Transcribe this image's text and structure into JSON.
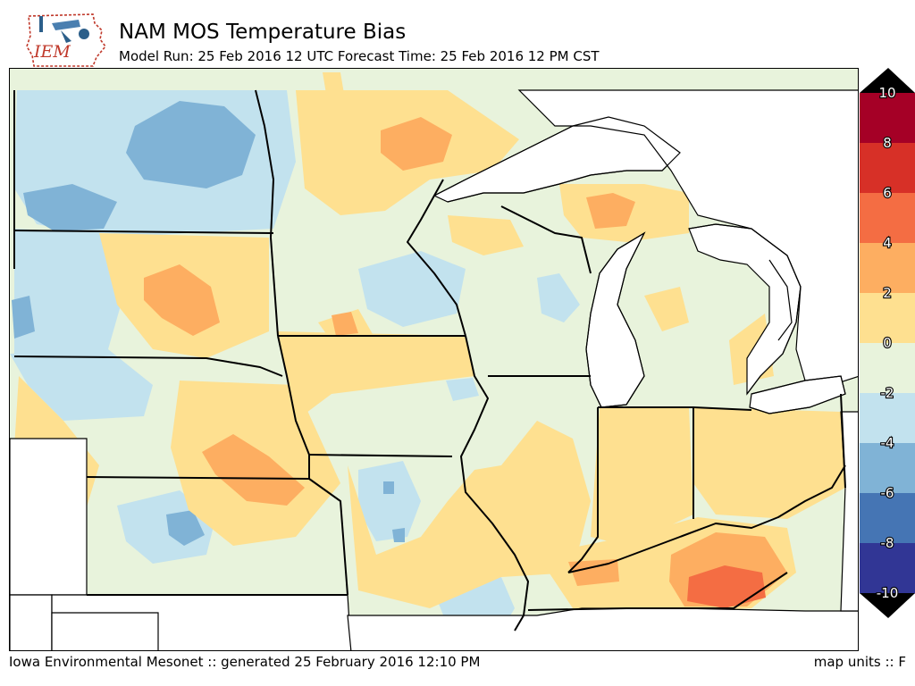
{
  "header": {
    "logo_text": "IEM",
    "title": "NAM MOS Temperature Bias",
    "subtitle": "Model Run: 25 Feb 2016 12 UTC Forecast Time: 25 Feb 2016 12 PM CST"
  },
  "legend": {
    "levels": [
      "10",
      "8",
      "6",
      "4",
      "2",
      "0",
      "-2",
      "-4",
      "-6",
      "-8",
      "-10"
    ],
    "bin_colors": [
      "#a50026",
      "#d73027",
      "#f46d43",
      "#fdae61",
      "#fee090",
      "#e8f3dc",
      "#c2e2ee",
      "#80b3d6",
      "#4575b4",
      "#313695"
    ],
    "over_color": "#000000",
    "under_color": "#000000"
  },
  "footer": {
    "credit": "Iowa Environmental Mesonet :: generated 25 February 2016 12:10 PM",
    "units": "map units :: F"
  }
}
